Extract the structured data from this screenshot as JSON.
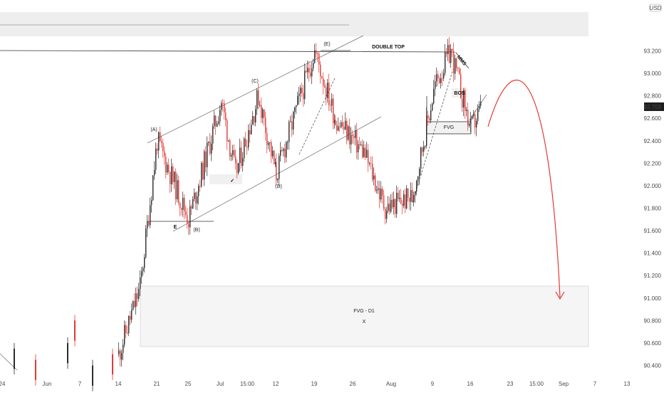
{
  "colors": {
    "up_candle": "#2b2b2b",
    "down_candle": "#e53935",
    "zone_fill": "#f2f2f2",
    "zone_border": "#d6d6d6",
    "trend_line": "#7a7a7a",
    "projection": "#e53935",
    "price_tag_bg": "#1e1e1e",
    "price_tag_text": "#ffffff"
  },
  "chart_data": {
    "type": "candlestick",
    "symbol_currency": "USD",
    "current_price": "92.703",
    "ylim": [
      90.35,
      93.55
    ],
    "y_ticks": [
      "93.200",
      "93.000",
      "92.800",
      "92.600",
      "92.400",
      "92.200",
      "92.000",
      "91.800",
      "91.600",
      "91.400",
      "91.200",
      "91.000",
      "90.800",
      "90.600",
      "90.400"
    ],
    "x_ticks": [
      "24",
      "Jun",
      "7",
      "14",
      "21",
      "25",
      "Jul",
      "15:00",
      "12",
      "19",
      "26",
      "Aug",
      "9",
      "16",
      "23",
      "15:00",
      "Sep",
      "7",
      "13"
    ],
    "key_price_path": [
      {
        "t": "Jun 14",
        "price": 90.5
      },
      {
        "t": "Jun 18",
        "price": 91.1
      },
      {
        "t": "Jun 21",
        "price": 92.4
      },
      {
        "t": "Jun 25",
        "price": 91.7
      },
      {
        "t": "Jul 1",
        "price": 92.75
      },
      {
        "t": "Jul 5",
        "price": 92.1
      },
      {
        "t": "Jul 9",
        "price": 92.8
      },
      {
        "t": "Jul 12",
        "price": 92.1
      },
      {
        "t": "Jul 19",
        "price": 93.2
      },
      {
        "t": "Jul 23",
        "price": 92.6
      },
      {
        "t": "Jul 28",
        "price": 92.3
      },
      {
        "t": "Jul 31",
        "price": 91.8
      },
      {
        "t": "Aug 4",
        "price": 91.9
      },
      {
        "t": "Aug 10",
        "price": 92.9
      },
      {
        "t": "Aug 13",
        "price": 93.2
      },
      {
        "t": "Aug 16",
        "price": 92.5
      },
      {
        "t": "Aug 18",
        "price": 92.7
      }
    ],
    "annotations": {
      "wave_labels": [
        "(A)",
        "(B)",
        "(C)",
        "(D)",
        "(E)"
      ],
      "e_label": "E",
      "double_top": "DOUBLE TOP",
      "mms": "MMS",
      "bos": "BOS",
      "fvg_small": "FVG",
      "fvg_d1": "FVG - D1",
      "fvg_d1_mark": "X",
      "check_mark": "✓"
    }
  }
}
